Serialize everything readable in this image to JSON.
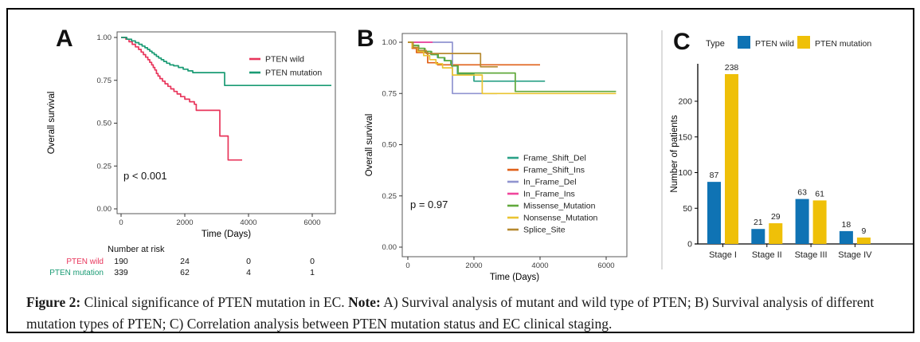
{
  "figure": {
    "panel_labels": {
      "a": "A",
      "b": "B",
      "c": "C"
    }
  },
  "caption": {
    "figure_label": "Figure 2:",
    "part1": " Clinical significance of PTEN mutation in EC. ",
    "note_label": "Note:",
    "part2": " A) Survival analysis of mutant and wild type of PTEN; B) Survival analysis of different mutation types of PTEN; C) Correlation analysis between PTEN mutation status and EC clinical staging."
  },
  "colors": {
    "pten_wild_red": "#e8355b",
    "pten_mutation_green": "#1a9b74",
    "bar_blue": "#0f73b4",
    "bar_yellow": "#efc008",
    "frame_gray": "#585858",
    "divider_gray": "#dcdcdc"
  },
  "chart_data": [
    {
      "id": "panelA",
      "type": "line",
      "subtype": "kaplan-meier-step",
      "xlabel": "Time (Days)",
      "ylabel": "Overall survival",
      "xlim": [
        0,
        6600
      ],
      "ylim": [
        0,
        1
      ],
      "xticks": [
        0,
        2000,
        4000,
        6000
      ],
      "yticks": [
        0,
        0.25,
        0.5,
        0.75,
        1
      ],
      "pvalue": "p < 0.001",
      "grid": false,
      "legend_position": "top-right-inside",
      "series": [
        {
          "name": "PTEN wild",
          "color": "#e8355b",
          "points": [
            [
              0,
              1.0
            ],
            [
              150,
              0.99
            ],
            [
              250,
              0.975
            ],
            [
              350,
              0.96
            ],
            [
              450,
              0.945
            ],
            [
              550,
              0.93
            ],
            [
              630,
              0.915
            ],
            [
              700,
              0.9
            ],
            [
              770,
              0.885
            ],
            [
              840,
              0.87
            ],
            [
              900,
              0.855
            ],
            [
              960,
              0.84
            ],
            [
              1010,
              0.825
            ],
            [
              1060,
              0.81
            ],
            [
              1110,
              0.79
            ],
            [
              1160,
              0.775
            ],
            [
              1220,
              0.76
            ],
            [
              1300,
              0.745
            ],
            [
              1380,
              0.73
            ],
            [
              1470,
              0.715
            ],
            [
              1560,
              0.7
            ],
            [
              1660,
              0.685
            ],
            [
              1760,
              0.67
            ],
            [
              1870,
              0.655
            ],
            [
              2000,
              0.64
            ],
            [
              2150,
              0.625
            ],
            [
              2300,
              0.61
            ],
            [
              2360,
              0.575
            ],
            [
              3100,
              0.425
            ],
            [
              3360,
              0.285
            ],
            [
              3800,
              0.285
            ]
          ]
        },
        {
          "name": "PTEN mutation",
          "color": "#1a9b74",
          "points": [
            [
              0,
              1.0
            ],
            [
              180,
              0.99
            ],
            [
              330,
              0.98
            ],
            [
              450,
              0.97
            ],
            [
              560,
              0.96
            ],
            [
              660,
              0.95
            ],
            [
              750,
              0.94
            ],
            [
              830,
              0.93
            ],
            [
              900,
              0.92
            ],
            [
              970,
              0.91
            ],
            [
              1040,
              0.9
            ],
            [
              1110,
              0.89
            ],
            [
              1180,
              0.88
            ],
            [
              1260,
              0.87
            ],
            [
              1340,
              0.86
            ],
            [
              1430,
              0.85
            ],
            [
              1530,
              0.84
            ],
            [
              1650,
              0.835
            ],
            [
              1800,
              0.825
            ],
            [
              1950,
              0.815
            ],
            [
              2100,
              0.805
            ],
            [
              2250,
              0.795
            ],
            [
              3250,
              0.72
            ],
            [
              6600,
              0.72
            ]
          ]
        }
      ],
      "risk_table": {
        "title": "Number at risk",
        "times": [
          0,
          2000,
          4000,
          6000
        ],
        "rows": [
          {
            "name": "PTEN wild",
            "color": "#e8355b",
            "values": [
              190,
              24,
              0,
              0
            ]
          },
          {
            "name": "PTEN mutation",
            "color": "#1a9b74",
            "values": [
              339,
              62,
              4,
              1
            ]
          }
        ]
      }
    },
    {
      "id": "panelB",
      "type": "line",
      "subtype": "kaplan-meier-step",
      "xlabel": "Time (Days)",
      "ylabel": "Overall survival",
      "xlim": [
        0,
        6300
      ],
      "ylim": [
        0,
        1
      ],
      "xticks": [
        0,
        2000,
        4000,
        6000
      ],
      "yticks": [
        0,
        0.25,
        0.5,
        0.75,
        1
      ],
      "pvalue": "p = 0.97",
      "grid": false,
      "legend_position": "bottom-right-inside",
      "series": [
        {
          "name": "Frame_Shift_Del",
          "color": "#2aa187",
          "points": [
            [
              0,
              1.0
            ],
            [
              150,
              0.985
            ],
            [
              320,
              0.97
            ],
            [
              500,
              0.955
            ],
            [
              700,
              0.94
            ],
            [
              900,
              0.925
            ],
            [
              1100,
              0.91
            ],
            [
              1300,
              0.89
            ],
            [
              1500,
              0.845
            ],
            [
              2000,
              0.81
            ],
            [
              4150,
              0.81
            ]
          ]
        },
        {
          "name": "Frame_Shift_Ins",
          "color": "#e06018",
          "points": [
            [
              0,
              1.0
            ],
            [
              130,
              0.97
            ],
            [
              260,
              0.95
            ],
            [
              600,
              0.9
            ],
            [
              900,
              0.89
            ],
            [
              4000,
              0.89
            ]
          ]
        },
        {
          "name": "In_Frame_Del",
          "color": "#9094d0",
          "points": [
            [
              0,
              1.0
            ],
            [
              1350,
              0.75
            ],
            [
              2700,
              0.75
            ]
          ]
        },
        {
          "name": "In_Frame_Ins",
          "color": "#f0459c",
          "points": [
            [
              0,
              1.0
            ],
            [
              750,
              1.0
            ]
          ]
        },
        {
          "name": "Missense_Mutation",
          "color": "#61a93c",
          "points": [
            [
              0,
              1.0
            ],
            [
              160,
              0.985
            ],
            [
              330,
              0.97
            ],
            [
              520,
              0.955
            ],
            [
              720,
              0.94
            ],
            [
              920,
              0.925
            ],
            [
              1120,
              0.91
            ],
            [
              1320,
              0.885
            ],
            [
              1520,
              0.85
            ],
            [
              3250,
              0.76
            ],
            [
              6300,
              0.76
            ]
          ]
        },
        {
          "name": "Nonsense_Mutation",
          "color": "#eac432",
          "points": [
            [
              0,
              1.0
            ],
            [
              130,
              0.975
            ],
            [
              300,
              0.955
            ],
            [
              480,
              0.935
            ],
            [
              660,
              0.915
            ],
            [
              850,
              0.895
            ],
            [
              1050,
              0.875
            ],
            [
              1350,
              0.84
            ],
            [
              2250,
              0.75
            ],
            [
              6300,
              0.75
            ]
          ]
        },
        {
          "name": "Splice_Site",
          "color": "#b6892f",
          "points": [
            [
              0,
              1.0
            ],
            [
              160,
              0.975
            ],
            [
              320,
              0.96
            ],
            [
              560,
              0.945
            ],
            [
              2200,
              0.88
            ],
            [
              2720,
              0.88
            ]
          ]
        }
      ]
    },
    {
      "id": "panelC",
      "type": "bar",
      "title": "",
      "legend_title": "Type",
      "xlabel": "",
      "ylabel": "Number of patients",
      "categories": [
        "Stage I",
        "Stage II",
        "Stage III",
        "Stage IV"
      ],
      "yticks": [
        0,
        50,
        100,
        150,
        200
      ],
      "ylim": [
        0,
        245
      ],
      "grid": false,
      "series": [
        {
          "name": "PTEN wild",
          "color": "#0f73b4",
          "values": [
            87,
            21,
            63,
            18
          ]
        },
        {
          "name": "PTEN mutation",
          "color": "#efc008",
          "values": [
            238,
            29,
            61,
            9
          ]
        }
      ]
    }
  ]
}
